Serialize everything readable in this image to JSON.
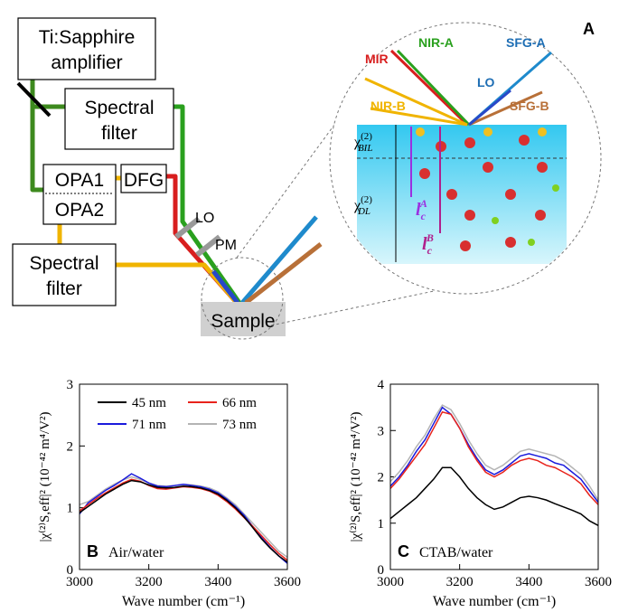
{
  "diagram": {
    "panel_label": "A",
    "amplifier": [
      "Ti:Sapphire",
      "amplifier"
    ],
    "filter_top": [
      "Spectral",
      "filter"
    ],
    "opa1": "OPA1",
    "opa2": "OPA2",
    "dfg": "DFG",
    "filter_bottom": [
      "Spectral",
      "filter"
    ],
    "lo": "LO",
    "pm": "PM",
    "sample": "Sample",
    "beams": {
      "mir": "MIR",
      "nir_a": "NIR-A",
      "sfg_a": "SFG-A",
      "lo": "LO",
      "sfg_b": "SFG-B",
      "nir_b": "NIR-B"
    },
    "chi_bil": {
      "symbol": "χ",
      "order": "(2)",
      "sub": "BIL"
    },
    "chi_dl": {
      "symbol": "χ",
      "order": "(2)",
      "sub": "DL"
    },
    "lc_a": {
      "symbol": "l",
      "sub": "c",
      "sup": "A"
    },
    "lc_b": {
      "symbol": "l",
      "sub": "c",
      "sup": "B"
    }
  },
  "chart_data": [
    {
      "type": "line",
      "panel_label": "B",
      "annotation": "Air/water",
      "x_label": "Wave number (cm⁻¹)",
      "y_label": "|χ⁽²⁾S,eff|² (10⁻⁴² m⁴/V²)",
      "xlim": [
        3000,
        3600
      ],
      "xticks": [
        3000,
        3200,
        3400,
        3600
      ],
      "ylim": [
        0,
        3
      ],
      "yticks": [
        0,
        1,
        2,
        3
      ],
      "legend": "top",
      "x": [
        3000,
        3025,
        3050,
        3075,
        3100,
        3125,
        3150,
        3175,
        3200,
        3225,
        3250,
        3275,
        3300,
        3325,
        3350,
        3375,
        3400,
        3425,
        3450,
        3475,
        3500,
        3525,
        3550,
        3575,
        3600
      ],
      "series": [
        {
          "name": "45 nm",
          "color": "#000000",
          "values": [
            0.92,
            1.02,
            1.12,
            1.22,
            1.3,
            1.38,
            1.44,
            1.42,
            1.37,
            1.33,
            1.32,
            1.33,
            1.35,
            1.34,
            1.32,
            1.28,
            1.22,
            1.12,
            1.0,
            0.85,
            0.68,
            0.5,
            0.35,
            0.22,
            0.12
          ]
        },
        {
          "name": "66 nm",
          "color": "#e8231c",
          "values": [
            0.95,
            1.05,
            1.15,
            1.24,
            1.32,
            1.4,
            1.46,
            1.43,
            1.36,
            1.31,
            1.3,
            1.32,
            1.34,
            1.33,
            1.31,
            1.27,
            1.2,
            1.1,
            0.98,
            0.84,
            0.7,
            0.55,
            0.4,
            0.26,
            0.15
          ]
        },
        {
          "name": "71 nm",
          "color": "#1a1adc",
          "values": [
            0.9,
            1.08,
            1.18,
            1.28,
            1.36,
            1.45,
            1.55,
            1.48,
            1.4,
            1.35,
            1.34,
            1.36,
            1.38,
            1.36,
            1.34,
            1.3,
            1.24,
            1.14,
            1.02,
            0.88,
            0.7,
            0.52,
            0.36,
            0.22,
            0.1
          ]
        },
        {
          "name": "73 nm",
          "color": "#b4b4b4",
          "values": [
            1.05,
            1.1,
            1.2,
            1.3,
            1.38,
            1.45,
            1.5,
            1.46,
            1.4,
            1.36,
            1.35,
            1.36,
            1.38,
            1.37,
            1.35,
            1.32,
            1.26,
            1.16,
            1.05,
            0.9,
            0.75,
            0.6,
            0.45,
            0.3,
            0.2
          ]
        }
      ]
    },
    {
      "type": "line",
      "panel_label": "C",
      "annotation": "CTAB/water",
      "x_label": "Wave number (cm⁻¹)",
      "y_label": "|χ⁽²⁾S,eff|² (10⁻⁴² m⁴/V²)",
      "xlim": [
        3000,
        3600
      ],
      "xticks": [
        3000,
        3200,
        3400,
        3600
      ],
      "ylim": [
        0,
        4
      ],
      "yticks": [
        0,
        1,
        2,
        3,
        4
      ],
      "x": [
        3000,
        3025,
        3050,
        3075,
        3100,
        3125,
        3150,
        3175,
        3200,
        3225,
        3250,
        3275,
        3300,
        3325,
        3350,
        3375,
        3400,
        3425,
        3450,
        3475,
        3500,
        3525,
        3550,
        3575,
        3600
      ],
      "series": [
        {
          "color": "#000000",
          "values": [
            1.1,
            1.25,
            1.4,
            1.55,
            1.75,
            1.95,
            2.2,
            2.2,
            2.0,
            1.75,
            1.55,
            1.4,
            1.3,
            1.35,
            1.45,
            1.55,
            1.58,
            1.55,
            1.5,
            1.42,
            1.35,
            1.28,
            1.2,
            1.05,
            0.95
          ]
        },
        {
          "color": "#e8231c",
          "values": [
            1.75,
            1.95,
            2.2,
            2.45,
            2.7,
            3.05,
            3.4,
            3.35,
            3.05,
            2.65,
            2.35,
            2.1,
            2.0,
            2.1,
            2.25,
            2.35,
            2.4,
            2.35,
            2.25,
            2.2,
            2.1,
            2.0,
            1.85,
            1.6,
            1.4
          ]
        },
        {
          "color": "#1a1adc",
          "values": [
            1.8,
            2.0,
            2.25,
            2.55,
            2.8,
            3.15,
            3.5,
            3.35,
            3.05,
            2.7,
            2.4,
            2.15,
            2.05,
            2.15,
            2.3,
            2.45,
            2.5,
            2.45,
            2.4,
            2.3,
            2.25,
            2.1,
            1.95,
            1.7,
            1.45
          ]
        },
        {
          "color": "#b4b4b4",
          "values": [
            1.9,
            2.1,
            2.35,
            2.65,
            2.9,
            3.25,
            3.55,
            3.45,
            3.15,
            2.8,
            2.5,
            2.25,
            2.15,
            2.25,
            2.4,
            2.55,
            2.6,
            2.55,
            2.5,
            2.45,
            2.35,
            2.2,
            2.05,
            1.8,
            1.5
          ]
        }
      ]
    }
  ]
}
